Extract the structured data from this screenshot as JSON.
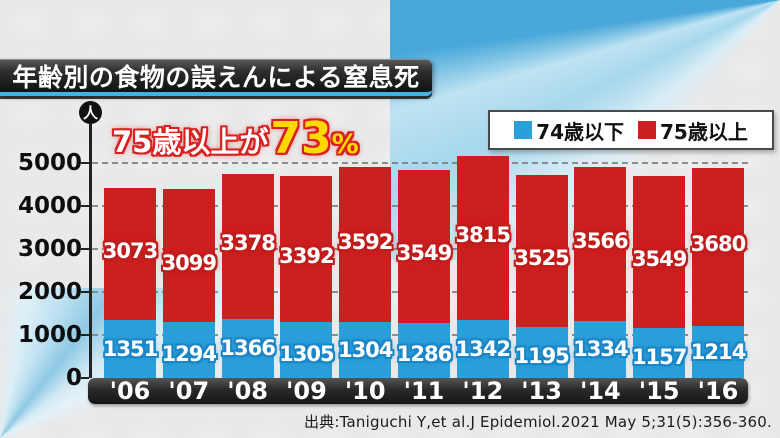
{
  "title": "年齢別の食物の誤えんによる窒息死",
  "annotation": {
    "prefix": "75歳以上が",
    "value": "73",
    "percent": "%"
  },
  "unit_label": "人",
  "legend": [
    {
      "label": "74歳以下",
      "color": "#2b9fd9"
    },
    {
      "label": "75歳以上",
      "color": "#cc1f1f"
    }
  ],
  "source": "出典:Taniguchi Y,et al.J Epidemiol.2021 May 5;31(5):356-360.",
  "colors": {
    "blue": "#2b9fd9",
    "red": "#cc1f1f",
    "accent_cyan": "#3fb3e6",
    "annotation_yellow": "#ffd900"
  },
  "chart_data": {
    "type": "bar",
    "stacked": true,
    "title": "年齢別の食物の誤えんによる窒息死",
    "categories": [
      "'06",
      "'07",
      "'08",
      "'09",
      "'10",
      "'11",
      "'12",
      "'13",
      "'14",
      "'15",
      "'16"
    ],
    "series": [
      {
        "name": "74歳以下",
        "color": "#2b9fd9",
        "values": [
          1351,
          1294,
          1366,
          1305,
          1304,
          1286,
          1342,
          1195,
          1334,
          1157,
          1214
        ]
      },
      {
        "name": "75歳以上",
        "color": "#cc1f1f",
        "values": [
          3073,
          3099,
          3378,
          3392,
          3592,
          3549,
          3815,
          3525,
          3566,
          3549,
          3680
        ]
      }
    ],
    "ylabel": "人",
    "ylim": [
      0,
      5000
    ],
    "yticks": [
      0,
      1000,
      2000,
      3000,
      4000,
      5000
    ],
    "grid": "horizontal-dashed",
    "legend_position": "top-right",
    "annotation": "75歳以上が73%"
  }
}
